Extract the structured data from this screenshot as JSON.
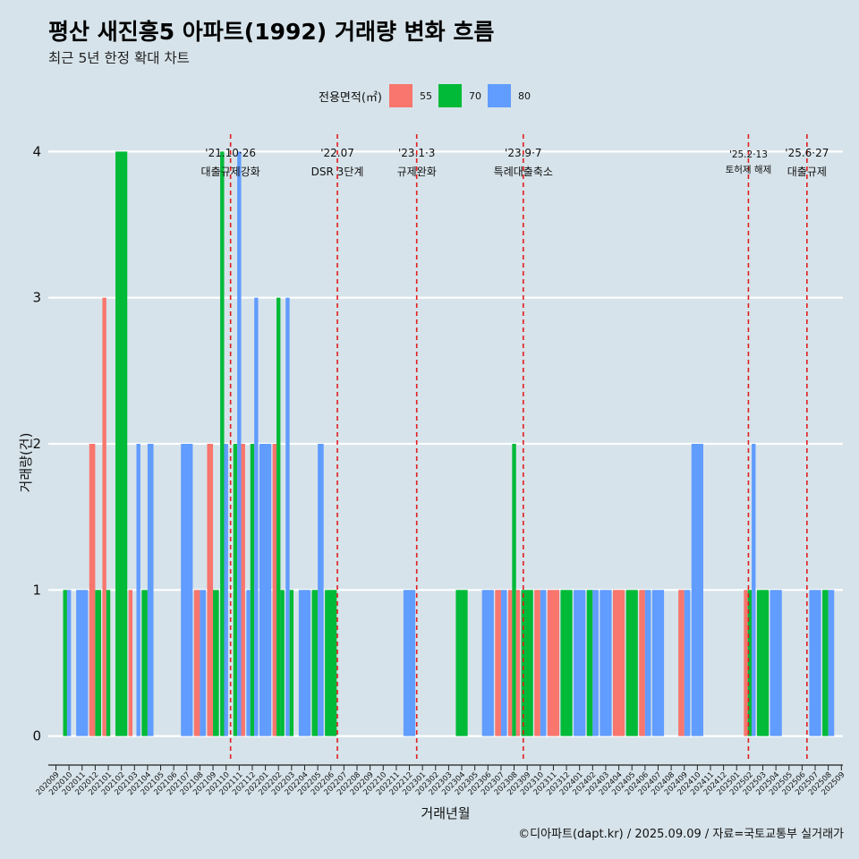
{
  "title": "평산 새진흥5 아파트(1992) 거래량 변화 흐름",
  "subtitle": "최근 5년 한정 확대 차트",
  "caption": "©디아파트(dapt.kr) / 2025.09.09 / 자료=국토교통부 실거래가",
  "legend": {
    "title": "전용면적(㎡)",
    "items": [
      {
        "label": "55",
        "color": "#f8766d"
      },
      {
        "label": "70",
        "color": "#00ba38"
      },
      {
        "label": "80",
        "color": "#619cff"
      }
    ]
  },
  "chart_data": {
    "type": "bar",
    "xlabel": "거래년월",
    "ylabel": "거래량(건)",
    "ylim": [
      -0.18,
      4.18
    ],
    "yticks": [
      0,
      1,
      2,
      3,
      4
    ],
    "grid": true,
    "legend_position": "top",
    "categories": [
      "202009",
      "202010",
      "202011",
      "202012",
      "202101",
      "202102",
      "202103",
      "202104",
      "202105",
      "202106",
      "202107",
      "202108",
      "202109",
      "202110",
      "202111",
      "202112",
      "202201",
      "202202",
      "202203",
      "202204",
      "202205",
      "202206",
      "202207",
      "202208",
      "202209",
      "202210",
      "202211",
      "202212",
      "202301",
      "202302",
      "202303",
      "202304",
      "202305",
      "202306",
      "202307",
      "202308",
      "202309",
      "202310",
      "202311",
      "202312",
      "202401",
      "202402",
      "202403",
      "202404",
      "202405",
      "202406",
      "202407",
      "202408",
      "202409",
      "202410",
      "202411",
      "202412",
      "202501",
      "202502",
      "202503",
      "202504",
      "202505",
      "202506",
      "202507",
      "202508",
      "202509"
    ],
    "bars": [
      {
        "month": "202010",
        "series": "70",
        "value": 1,
        "slot": 0,
        "slots": 3
      },
      {
        "month": "202010",
        "series": "80",
        "value": 1,
        "slot": 1,
        "slots": 3
      },
      {
        "month": "202011",
        "series": "80",
        "value": 1,
        "slot": 0,
        "slots": 1
      },
      {
        "month": "202012",
        "series": "55",
        "value": 2,
        "slot": 0,
        "slots": 2
      },
      {
        "month": "202012",
        "series": "70",
        "value": 1,
        "slot": 1,
        "slots": 2
      },
      {
        "month": "202101",
        "series": "55",
        "value": 3,
        "slot": 0,
        "slots": 3
      },
      {
        "month": "202101",
        "series": "70",
        "value": 1,
        "slot": 1,
        "slots": 3
      },
      {
        "month": "202102",
        "series": "70",
        "value": 4,
        "slot": 0,
        "slots": 1
      },
      {
        "month": "202103",
        "series": "55",
        "value": 1,
        "slot": 0,
        "slots": 3
      },
      {
        "month": "202103",
        "series": "80",
        "value": 2,
        "slot": 2,
        "slots": 3
      },
      {
        "month": "202104",
        "series": "70",
        "value": 1,
        "slot": 0,
        "slots": 2
      },
      {
        "month": "202104",
        "series": "80",
        "value": 2,
        "slot": 1,
        "slots": 2
      },
      {
        "month": "202107",
        "series": "80",
        "value": 2,
        "slot": 0,
        "slots": 1
      },
      {
        "month": "202108",
        "series": "55",
        "value": 1,
        "slot": 0,
        "slots": 2
      },
      {
        "month": "202108",
        "series": "80",
        "value": 1,
        "slot": 1,
        "slots": 2
      },
      {
        "month": "202109",
        "series": "55",
        "value": 2,
        "slot": 0,
        "slots": 2
      },
      {
        "month": "202109",
        "series": "70",
        "value": 1,
        "slot": 1,
        "slots": 2
      },
      {
        "month": "202110",
        "series": "70",
        "value": 4,
        "slot": 0,
        "slots": 3
      },
      {
        "month": "202110",
        "series": "80",
        "value": 2,
        "slot": 1,
        "slots": 3
      },
      {
        "month": "202111",
        "series": "70",
        "value": 2,
        "slot": 0,
        "slots": 3
      },
      {
        "month": "202111",
        "series": "80",
        "value": 4,
        "slot": 1,
        "slots": 3
      },
      {
        "month": "202111",
        "series": "55",
        "value": 2,
        "slot": 2,
        "slots": 3
      },
      {
        "month": "202112",
        "series": "80",
        "value": 1,
        "slot": 0,
        "slots": 3
      },
      {
        "month": "202112",
        "series": "70",
        "value": 2,
        "slot": 1,
        "slots": 3
      },
      {
        "month": "202112",
        "series": "80",
        "value": 3,
        "slot": 2,
        "slots": 3
      },
      {
        "month": "202201",
        "series": "80",
        "value": 2,
        "slot": 0,
        "slots": 1
      },
      {
        "month": "202202",
        "series": "55",
        "value": 2,
        "slot": 0,
        "slots": 3
      },
      {
        "month": "202202",
        "series": "70",
        "value": 3,
        "slot": 1,
        "slots": 3
      },
      {
        "month": "202202",
        "series": "70",
        "value": 1,
        "slot": 2,
        "slots": 3
      },
      {
        "month": "202203",
        "series": "80",
        "value": 3,
        "slot": 0,
        "slots": 3
      },
      {
        "month": "202203",
        "series": "70",
        "value": 1,
        "slot": 1,
        "slots": 3
      },
      {
        "month": "202204",
        "series": "80",
        "value": 1,
        "slot": 0,
        "slots": 1
      },
      {
        "month": "202205",
        "series": "70",
        "value": 1,
        "slot": 0,
        "slots": 2
      },
      {
        "month": "202205",
        "series": "80",
        "value": 2,
        "slot": 1,
        "slots": 2
      },
      {
        "month": "202206",
        "series": "70",
        "value": 1,
        "slot": 0,
        "slots": 1
      },
      {
        "month": "202212",
        "series": "80",
        "value": 1,
        "slot": 0,
        "slots": 1
      },
      {
        "month": "202304",
        "series": "70",
        "value": 1,
        "slot": 0,
        "slots": 1
      },
      {
        "month": "202306",
        "series": "80",
        "value": 1,
        "slot": 0,
        "slots": 1
      },
      {
        "month": "202307",
        "series": "55",
        "value": 1,
        "slot": 0,
        "slots": 2
      },
      {
        "month": "202307",
        "series": "80",
        "value": 1,
        "slot": 1,
        "slots": 2
      },
      {
        "month": "202308",
        "series": "55",
        "value": 1,
        "slot": 0,
        "slots": 3
      },
      {
        "month": "202308",
        "series": "70",
        "value": 2,
        "slot": 1,
        "slots": 3
      },
      {
        "month": "202308",
        "series": "55",
        "value": 1,
        "slot": 2,
        "slots": 3
      },
      {
        "month": "202309",
        "series": "70",
        "value": 1,
        "slot": 0,
        "slots": 1
      },
      {
        "month": "202310",
        "series": "55",
        "value": 1,
        "slot": 0,
        "slots": 2
      },
      {
        "month": "202310",
        "series": "80",
        "value": 1,
        "slot": 1,
        "slots": 2
      },
      {
        "month": "202311",
        "series": "55",
        "value": 1,
        "slot": 0,
        "slots": 1
      },
      {
        "month": "202312",
        "series": "70",
        "value": 1,
        "slot": 0,
        "slots": 1
      },
      {
        "month": "202401",
        "series": "80",
        "value": 1,
        "slot": 0,
        "slots": 1
      },
      {
        "month": "202402",
        "series": "70",
        "value": 1,
        "slot": 0,
        "slots": 2
      },
      {
        "month": "202402",
        "series": "80",
        "value": 1,
        "slot": 1,
        "slots": 2
      },
      {
        "month": "202403",
        "series": "80",
        "value": 1,
        "slot": 0,
        "slots": 1
      },
      {
        "month": "202404",
        "series": "55",
        "value": 1,
        "slot": 0,
        "slots": 1
      },
      {
        "month": "202405",
        "series": "70",
        "value": 1,
        "slot": 0,
        "slots": 1
      },
      {
        "month": "202406",
        "series": "55",
        "value": 1,
        "slot": 0,
        "slots": 2
      },
      {
        "month": "202406",
        "series": "80",
        "value": 1,
        "slot": 1,
        "slots": 2
      },
      {
        "month": "202407",
        "series": "80",
        "value": 1,
        "slot": 0,
        "slots": 1
      },
      {
        "month": "202409",
        "series": "55",
        "value": 1,
        "slot": 0,
        "slots": 2
      },
      {
        "month": "202409",
        "series": "80",
        "value": 1,
        "slot": 1,
        "slots": 2
      },
      {
        "month": "202410",
        "series": "80",
        "value": 2,
        "slot": 0,
        "slots": 1
      },
      {
        "month": "202502",
        "series": "55",
        "value": 1,
        "slot": 0,
        "slots": 3
      },
      {
        "month": "202502",
        "series": "70",
        "value": 1,
        "slot": 1,
        "slots": 3
      },
      {
        "month": "202502",
        "series": "80",
        "value": 2,
        "slot": 2,
        "slots": 3
      },
      {
        "month": "202503",
        "series": "70",
        "value": 1,
        "slot": 0,
        "slots": 1
      },
      {
        "month": "202504",
        "series": "80",
        "value": 1,
        "slot": 0,
        "slots": 1
      },
      {
        "month": "202507",
        "series": "80",
        "value": 1,
        "slot": 0,
        "slots": 1
      },
      {
        "month": "202508",
        "series": "70",
        "value": 1,
        "slot": 0,
        "slots": 2
      },
      {
        "month": "202508",
        "series": "80",
        "value": 1,
        "slot": 1,
        "slots": 2
      }
    ],
    "events": [
      {
        "date": "'21.10·26",
        "label": "대출규제강화",
        "month": "202110",
        "offset": 0.84,
        "small": false
      },
      {
        "date": "'22.07",
        "label": "DSR 3단계",
        "month": "202207",
        "offset": 0.0,
        "small": false
      },
      {
        "date": "'23.1·3",
        "label": "규제완화",
        "month": "202301",
        "offset": 0.06,
        "small": false
      },
      {
        "date": "'23.9·7",
        "label": "특례대출축소",
        "month": "202309",
        "offset": 0.2,
        "small": false
      },
      {
        "date": "'25.2·13",
        "label": "토허제 해제",
        "month": "202502",
        "offset": 0.4,
        "small": true
      },
      {
        "date": "'25.6·27",
        "label": "대출규제",
        "month": "202506",
        "offset": 0.87,
        "small": false
      }
    ]
  }
}
